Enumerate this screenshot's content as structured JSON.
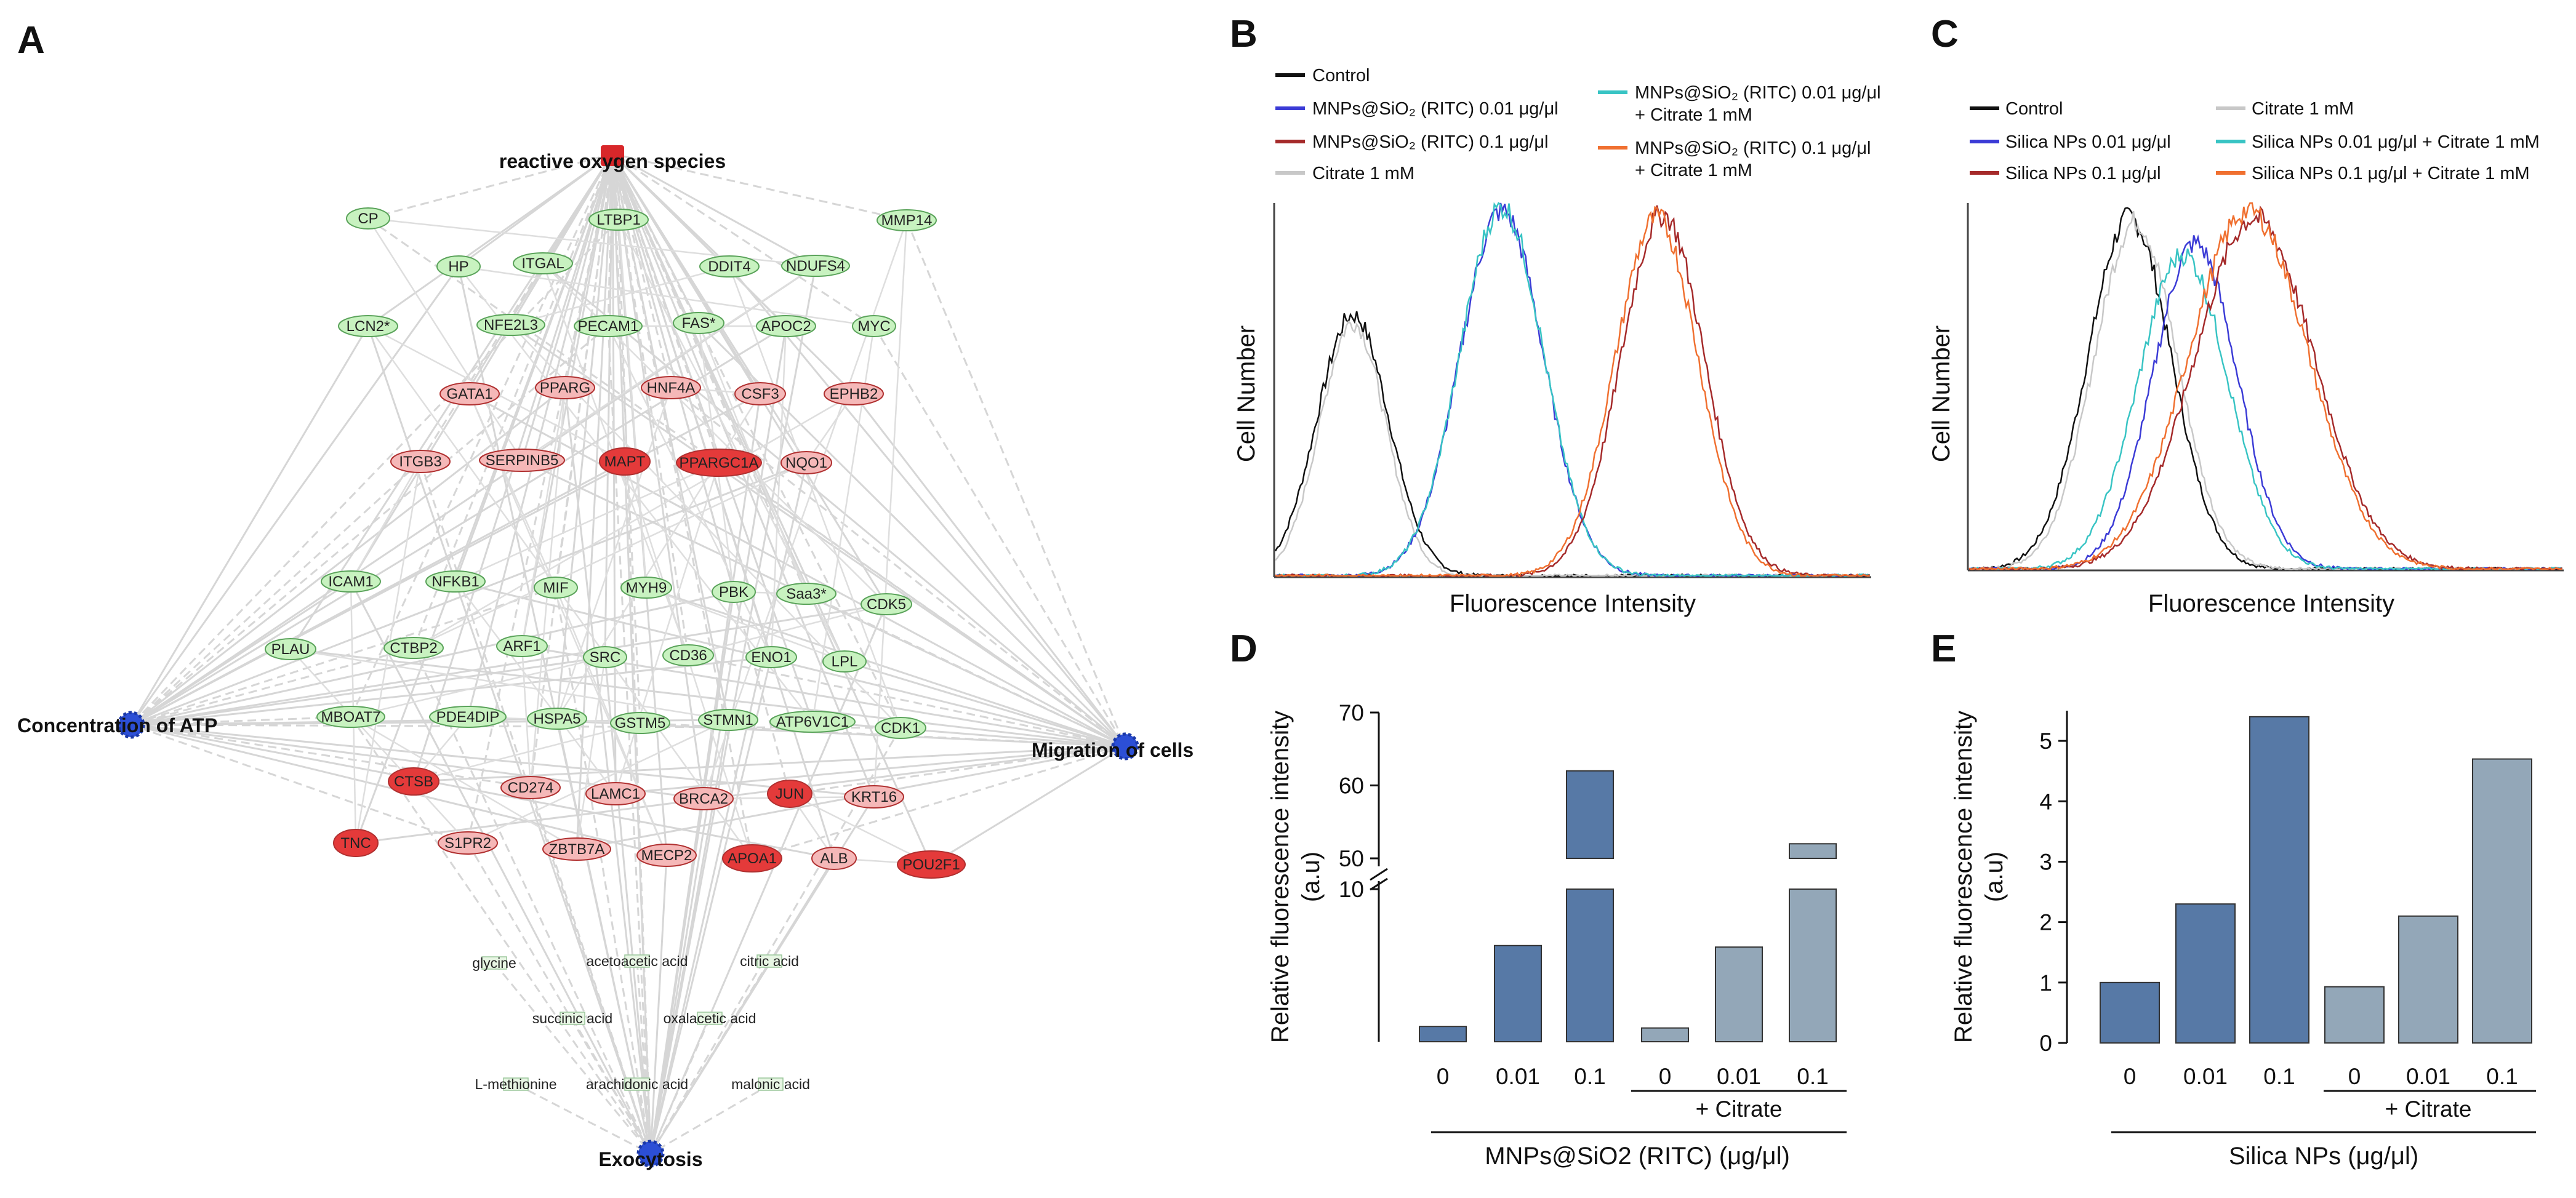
{
  "panels": {
    "A": "A",
    "B": "B",
    "C": "C",
    "D": "D",
    "E": "E"
  },
  "network": {
    "hubs": {
      "top": "reactive oxygen species",
      "left": "Concentration of ATP",
      "right": "Migration of cells",
      "bottom": "Exocytosis"
    },
    "green_nodes": [
      "CP",
      "HP",
      "ITGAL",
      "LTBP1",
      "DDIT4",
      "NDUFS4",
      "MMP14",
      "LCN2*",
      "NFE2L3",
      "PECAM1",
      "FAS*",
      "APOC2",
      "MYC",
      "ICAM1",
      "NFKB1",
      "MIF",
      "MYH9",
      "PBK",
      "Saa3*",
      "CDK5",
      "PLAU",
      "CTBP2",
      "ARF1",
      "SRC",
      "CD36",
      "ENO1",
      "LPL",
      "MBOAT7",
      "PDE4DIP",
      "HSPA5",
      "GSTM5",
      "STMN1",
      "ATP6V1C1",
      "CDK1"
    ],
    "red_nodes": [
      "GATA1",
      "PPARG",
      "HNF4A",
      "CSF3",
      "EPHB2",
      "ITGB3",
      "SERPINB5",
      "MAPT",
      "PPARGC1A",
      "NQO1",
      "CTSB",
      "CD274",
      "LAMC1",
      "BRCA2",
      "JUN",
      "KRT16",
      "TNC",
      "S1PR2",
      "ZBTB7A",
      "MECP2",
      "APOA1",
      "ALB",
      "POU2F1"
    ],
    "metabolites": [
      "glycine",
      "acetoacetic acid",
      "citric acid",
      "succinic acid",
      "oxalacetic acid",
      "L-methionine",
      "arachidonic acid",
      "malonic acid"
    ]
  },
  "panel_B": {
    "legend": [
      "Control",
      "MNPs@SiO₂ (RITC) 0.01 μg/μl",
      "MNPs@SiO₂ (RITC) 0.1 μg/μl",
      "Citrate 1 mM"
    ],
    "legend_right_1": [
      "MNPs@SiO₂ (RITC) 0.01 μg/μl",
      "+ Citrate 1 mM"
    ],
    "legend_right_2": [
      "MNPs@SiO₂ (RITC) 0.1 μg/μl",
      "+ Citrate 1 mM"
    ],
    "ylabel": "Cell Number",
    "xlabel": "Fluorescence Intensity"
  },
  "panel_C": {
    "legend": [
      "Control",
      "Silica NPs 0.01 μg/μl",
      "Silica NPs 0.1 μg/μl"
    ],
    "legend_right": [
      "Citrate 1 mM",
      "Silica NPs 0.01 μg/μl + Citrate 1 mM",
      "Silica NPs 0.1 μg/μl + Citrate 1 mM"
    ],
    "ylabel": "Cell Number",
    "xlabel": "Fluorescence Intensity"
  },
  "colors": {
    "control": "#111111",
    "blue": "#3b3bd6",
    "darkred": "#a52a2a",
    "lightgray": "#c8c8c8",
    "cyan": "#38c4c4",
    "orange": "#f07030",
    "bar_dark": "#5779a6",
    "bar_light": "#93a7b8",
    "node_green": "#c8f2c0",
    "node_red": "#f5b8b8",
    "node_red_dark": "#e43a3a",
    "hub_blue": "#2c4fd6"
  },
  "chart_data": [
    {
      "type": "line",
      "panel": "B",
      "title": "",
      "xlabel": "Fluorescence Intensity",
      "ylabel": "Cell Number",
      "x_range": [
        0,
        100
      ],
      "y_range": [
        0,
        100
      ],
      "series": [
        {
          "name": "Control",
          "peak_x": 13,
          "peak_y": 70,
          "width": 6
        },
        {
          "name": "Citrate 1 mM",
          "peak_x": 13,
          "peak_y": 68,
          "width": 5.5
        },
        {
          "name": "MNPs@SiO₂ (RITC) 0.01 μg/μl",
          "peak_x": 38,
          "peak_y": 98,
          "width": 7
        },
        {
          "name": "MNPs@SiO₂ (RITC) 0.01 μg/μl + Citrate 1 mM",
          "peak_x": 38,
          "peak_y": 99,
          "width": 7
        },
        {
          "name": "MNPs@SiO₂ (RITC) 0.1 μg/μl",
          "peak_x": 65,
          "peak_y": 97,
          "width": 7
        },
        {
          "name": "MNPs@SiO₂ (RITC) 0.1 μg/μl + Citrate 1 mM",
          "peak_x": 64,
          "peak_y": 96,
          "width": 7
        }
      ]
    },
    {
      "type": "line",
      "panel": "C",
      "title": "",
      "xlabel": "Fluorescence Intensity",
      "ylabel": "Cell Number",
      "x_range": [
        0,
        100
      ],
      "y_range": [
        0,
        100
      ],
      "series": [
        {
          "name": "Control",
          "peak_x": 27,
          "peak_y": 96,
          "width": 7
        },
        {
          "name": "Citrate 1 mM",
          "peak_x": 28,
          "peak_y": 95,
          "width": 7
        },
        {
          "name": "Silica NPs 0.01 μg/μl",
          "peak_x": 38,
          "peak_y": 89,
          "width": 7
        },
        {
          "name": "Silica NPs 0.01 μg/μl + Citrate 1 mM",
          "peak_x": 36,
          "peak_y": 86,
          "width": 7.5
        },
        {
          "name": "Silica NPs 0.1 μg/μl",
          "peak_x": 48,
          "peak_y": 96,
          "width": 10
        },
        {
          "name": "Silica NPs 0.1 μg/μl + Citrate 1 mM",
          "peak_x": 47,
          "peak_y": 98,
          "width": 10
        }
      ]
    },
    {
      "type": "bar",
      "panel": "D",
      "ylabel": "Relative fluorescence intensity\n(a.u)",
      "xlabel": "MNPs@SiO2 (RITC) (μg/μl)",
      "categories": [
        "0",
        "0.01",
        "0.1",
        "0",
        "0.01",
        "0.1"
      ],
      "group_label": "+ Citrate",
      "values": [
        1,
        6.3,
        62,
        0.9,
        6.2,
        52
      ],
      "broken_axis": {
        "lower": [
          0,
          10
        ],
        "upper": [
          50,
          70
        ]
      },
      "yticks": [
        10,
        50,
        60,
        70
      ]
    },
    {
      "type": "bar",
      "panel": "E",
      "ylabel": "Relative fluorescence intensity\n(a.u)",
      "xlabel": "Silica NPs (μg/μl)",
      "categories": [
        "0",
        "0.01",
        "0.1",
        "0",
        "0.01",
        "0.1"
      ],
      "group_label": "+ Citrate",
      "values": [
        1.0,
        2.3,
        5.4,
        0.93,
        2.1,
        4.7
      ],
      "ylim": [
        0,
        5.5
      ],
      "yticks": [
        0,
        1,
        2,
        3,
        4,
        5
      ]
    }
  ]
}
